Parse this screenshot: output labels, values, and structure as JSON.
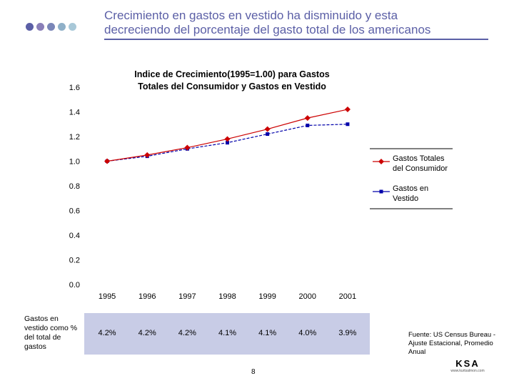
{
  "header": {
    "title_line1": "Crecimiento en gastos en vestido ha disminuido y esta",
    "title_line2": "decreciendo del porcentaje del gasto total de los americanos",
    "dot_colors": [
      "#5b5fa6",
      "#8a7fb8",
      "#7a86b8",
      "#8fb0c8",
      "#a8c8d8"
    ]
  },
  "chart_data": {
    "type": "line",
    "title_line1": "Indice de Crecimiento(1995=1.00) para Gastos",
    "title_line2": "Totales del Consumidor y Gastos en Vestido",
    "categories": [
      "1995",
      "1996",
      "1997",
      "1998",
      "1999",
      "2000",
      "2001"
    ],
    "ylim": [
      0,
      1.6
    ],
    "yticks": [
      "0.0",
      "0.2",
      "0.4",
      "0.6",
      "0.8",
      "1.0",
      "1.2",
      "1.4",
      "1.6"
    ],
    "series": [
      {
        "name": "Gastos Totales del Consumidor",
        "label_line1": "Gastos Totales",
        "label_line2": "del Consumidor",
        "color": "#cc0000",
        "marker": "diamond",
        "values": [
          1.0,
          1.05,
          1.11,
          1.18,
          1.26,
          1.35,
          1.42
        ]
      },
      {
        "name": "Gastos en Vestido",
        "label_line1": "Gastos en",
        "label_line2": "Vestido",
        "color": "#0000aa",
        "marker": "square",
        "values": [
          1.0,
          1.04,
          1.1,
          1.15,
          1.22,
          1.29,
          1.3
        ]
      }
    ]
  },
  "share_row": {
    "label": "Gastos en vestido como % del total de gastos",
    "values": [
      "4.2%",
      "4.2%",
      "4.2%",
      "4.1%",
      "4.1%",
      "4.0%",
      "3.9%"
    ]
  },
  "source": "Fuente: US Census Bureau - Ajuste Estacional, Promedio Anual",
  "logo": {
    "text": "KSA",
    "sub": "www.kurtsalmon.com"
  },
  "page_number": "8"
}
